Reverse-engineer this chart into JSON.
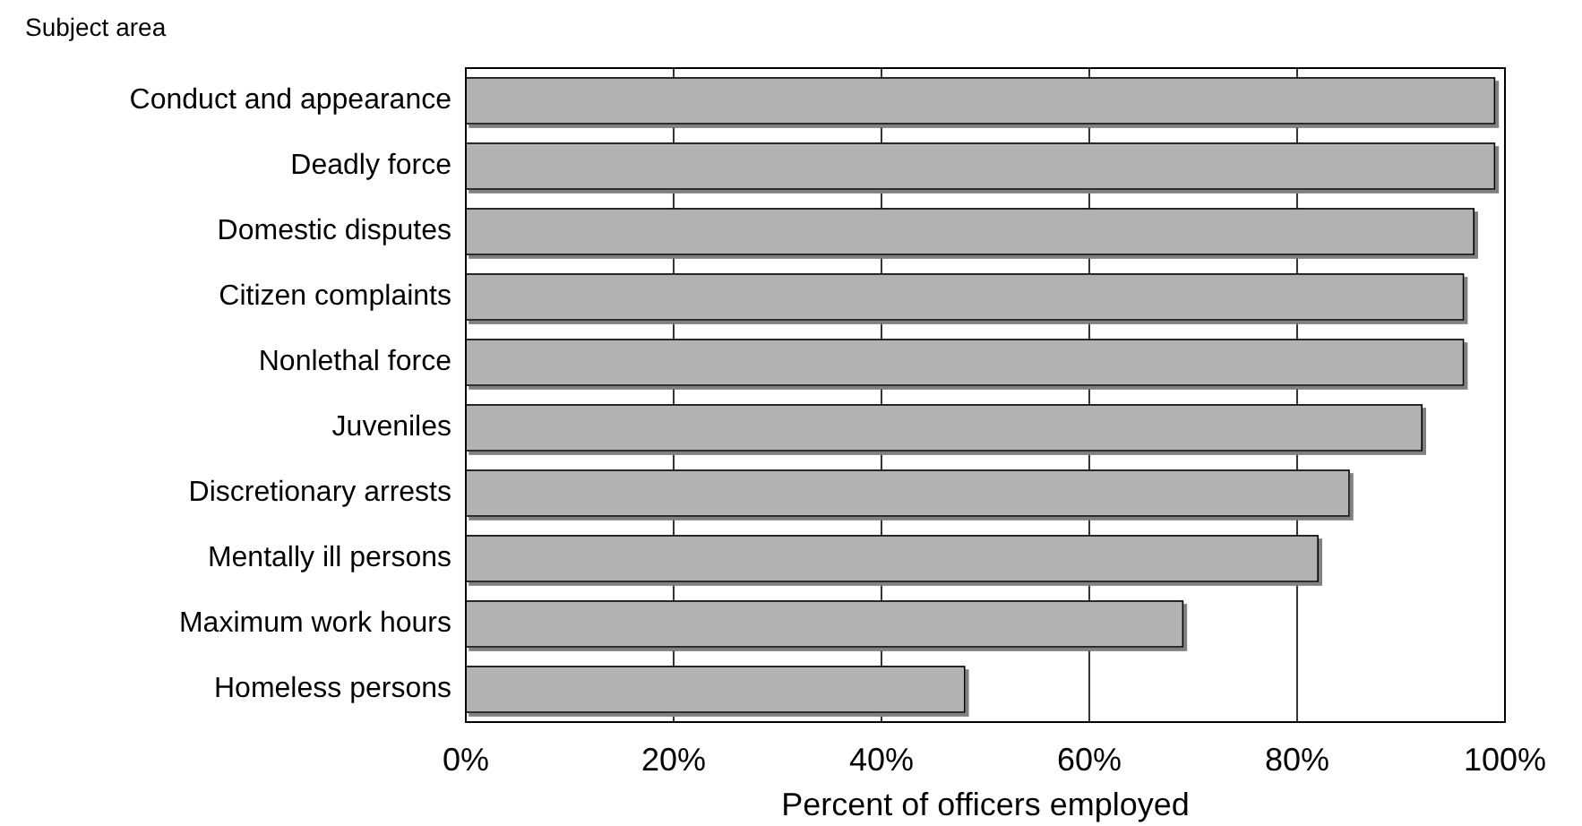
{
  "chart_data": {
    "type": "bar",
    "orientation": "horizontal",
    "ylabel": "Subject area",
    "xlabel": "Percent of officers employed",
    "categories": [
      "Conduct and appearance",
      "Deadly force",
      "Domestic disputes",
      "Citizen complaints",
      "Nonlethal force",
      "Juveniles",
      "Discretionary arrests",
      "Mentally ill persons",
      "Maximum work hours",
      "Homeless persons"
    ],
    "values": [
      99,
      99,
      97,
      96,
      96,
      92,
      85,
      82,
      69,
      48
    ],
    "color": "#b2b2b2",
    "xlim": [
      0,
      100
    ],
    "xticks": [
      {
        "value": 0,
        "label": "0%"
      },
      {
        "value": 20,
        "label": "20%"
      },
      {
        "value": 40,
        "label": "40%"
      },
      {
        "value": 60,
        "label": "60%"
      },
      {
        "value": 80,
        "label": "80%"
      },
      {
        "value": 100,
        "label": "100%"
      }
    ],
    "grid": "x"
  }
}
